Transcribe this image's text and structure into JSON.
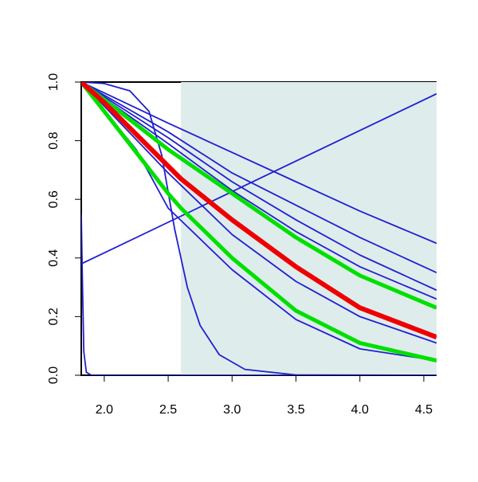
{
  "chart_data": {
    "type": "line",
    "xlim": [
      1.82,
      4.6
    ],
    "ylim": [
      0,
      1
    ],
    "xticks": [
      {
        "value": 2,
        "label": "2.0"
      },
      {
        "value": 2.5,
        "label": "2.5"
      },
      {
        "value": 3,
        "label": "3.0"
      },
      {
        "value": 3.5,
        "label": "3.5"
      },
      {
        "value": 4,
        "label": "4.0"
      },
      {
        "value": 4.5,
        "label": "4.5"
      }
    ],
    "yticks": [
      {
        "value": 0,
        "label": "0.0"
      },
      {
        "value": 0.2,
        "label": "0.2"
      },
      {
        "value": 0.4,
        "label": "0.4"
      },
      {
        "value": 0.6,
        "label": "0.6"
      },
      {
        "value": 0.8,
        "label": "0.8"
      },
      {
        "value": 1,
        "label": "1.0"
      }
    ],
    "shade_x": [
      2.6,
      4.6
    ],
    "shade_color": "#dfecec",
    "series": [
      {
        "color": "#2020d0",
        "x": [
          1.82,
          4.6
        ],
        "values": [
          0.38,
          0.96
        ]
      },
      {
        "color": "#2020d0",
        "x": [
          1.82,
          2.5,
          3.0,
          3.5,
          4.0,
          4.6
        ],
        "values": [
          1,
          0.86,
          0.76,
          0.66,
          0.56,
          0.45
        ]
      },
      {
        "color": "#2020d0",
        "x": [
          1.82,
          2.5,
          3.0,
          3.5,
          4.0,
          4.6
        ],
        "values": [
          1,
          0.83,
          0.69,
          0.58,
          0.47,
          0.35
        ]
      },
      {
        "color": "#2020d0",
        "x": [
          1.82,
          2.5,
          3.0,
          3.5,
          4.0,
          4.6
        ],
        "values": [
          1,
          0.81,
          0.66,
          0.53,
          0.41,
          0.29
        ]
      },
      {
        "color": "#2020d0",
        "x": [
          1.82,
          2.5,
          3.0,
          3.5,
          4.0,
          4.6
        ],
        "values": [
          1,
          0.79,
          0.63,
          0.49,
          0.37,
          0.26
        ]
      },
      {
        "color": "#2020d0",
        "x": [
          1.82,
          2.5,
          3.0,
          3.5,
          4.0,
          4.6
        ],
        "values": [
          1,
          0.69,
          0.48,
          0.32,
          0.2,
          0.11
        ]
      },
      {
        "color": "#2020d0",
        "x": [
          1.82,
          2.25,
          2.5,
          3.0,
          3.5,
          4.0,
          4.6
        ],
        "values": [
          1,
          0.77,
          0.57,
          0.36,
          0.19,
          0.09,
          0.05
        ]
      },
      {
        "color": "#2020d0",
        "x": [
          1.82,
          2.0,
          2.2,
          2.35,
          2.45,
          2.55,
          2.65,
          2.75,
          2.9,
          3.1,
          3.5,
          4.6
        ],
        "values": [
          1,
          0.995,
          0.97,
          0.9,
          0.75,
          0.5,
          0.3,
          0.17,
          0.07,
          0.02,
          0.001,
          0
        ]
      },
      {
        "color": "#2020d0",
        "x": [
          1.82,
          1.83,
          1.84,
          1.86,
          1.9,
          4.6
        ],
        "values": [
          0.55,
          0.3,
          0.08,
          0.01,
          0,
          0
        ]
      },
      {
        "color": "#00e000",
        "x": [
          1.82,
          2.0,
          2.5,
          3.0,
          3.5,
          4.0,
          4.6
        ],
        "values": [
          1,
          0.94,
          0.77,
          0.62,
          0.47,
          0.34,
          0.23
        ]
      },
      {
        "color": "#00e000",
        "x": [
          1.82,
          2.0,
          2.5,
          2.6,
          3.0,
          3.5,
          4.0,
          4.6
        ],
        "values": [
          1,
          0.9,
          0.62,
          0.57,
          0.4,
          0.22,
          0.11,
          0.05
        ]
      },
      {
        "color": "#ee0000",
        "x": [
          1.82,
          2.0,
          2.6,
          3.0,
          3.5,
          4.0,
          4.6
        ],
        "values": [
          1,
          0.93,
          0.67,
          0.53,
          0.37,
          0.23,
          0.13
        ]
      }
    ]
  }
}
